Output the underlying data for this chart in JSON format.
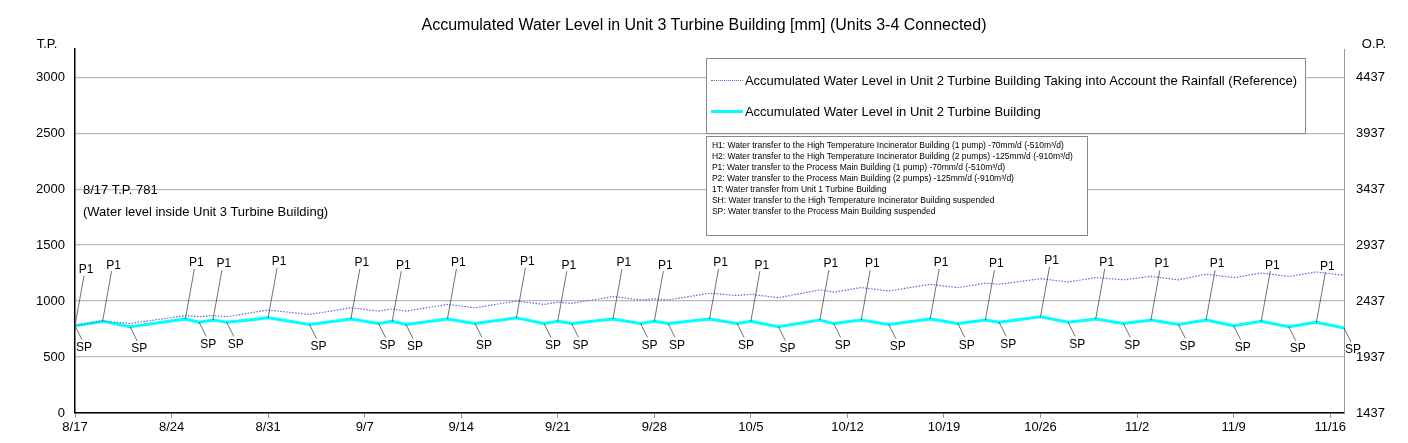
{
  "chart_data": {
    "type": "line",
    "title": "Accumulated Water Level in Unit 3 Turbine Building [mm] (Units 3-4 Connected)",
    "ylabel": "T.P.",
    "y2label": "O.P.",
    "x": [
      "--08-17",
      "--08-19",
      "--08-21",
      "--08-25",
      "--08-26",
      "--08-27",
      "--08-28",
      "--08-31",
      "--09-03",
      "--09-06",
      "--09-08",
      "--09-09",
      "--09-10",
      "--09-13",
      "--09-15",
      "--09-18",
      "--09-20",
      "--09-21",
      "--09-22",
      "--09-25",
      "--09-27",
      "--09-28",
      "--09-29",
      "--10-02",
      "--10-04",
      "--10-05",
      "--10-07",
      "--10-10",
      "--10-11",
      "--10-13",
      "--10-15",
      "--10-18",
      "--10-20",
      "--10-22",
      "--10-23",
      "--10-26",
      "--10-28",
      "--10-30",
      "--11-01",
      "--11-03",
      "--11-05",
      "--11-07",
      "--11-09",
      "--11-11",
      "--11-13",
      "--11-15",
      "--11-17"
    ],
    "series": [
      {
        "name": "Accumulated Water Level in Unit 2 Turbine Building Taking into Account the Rainfall (Reference)",
        "color": "#6666cc",
        "line_style": "dotted",
        "values": [
          780,
          820,
          800,
          870,
          860,
          870,
          860,
          920,
          880,
          940,
          910,
          930,
          910,
          970,
          940,
          1000,
          970,
          990,
          980,
          1040,
          1010,
          1020,
          1010,
          1070,
          1050,
          1060,
          1030,
          1100,
          1080,
          1120,
          1090,
          1150,
          1120,
          1160,
          1150,
          1200,
          1170,
          1210,
          1190,
          1220,
          1190,
          1240,
          1210,
          1250,
          1220,
          1260,
          1230
        ]
      },
      {
        "name": "Accumulated Water Level in Unit 2 Turbine Building",
        "color": "#00ffff",
        "line_style": "solid",
        "values": [
          780,
          820,
          770,
          840,
          810,
          830,
          810,
          850,
          790,
          840,
          800,
          820,
          790,
          840,
          800,
          850,
          800,
          820,
          800,
          840,
          800,
          820,
          800,
          840,
          800,
          820,
          770,
          830,
          800,
          830,
          790,
          840,
          800,
          830,
          810,
          860,
          810,
          840,
          800,
          830,
          790,
          830,
          780,
          820,
          770,
          810,
          760
        ]
      }
    ],
    "xlim": [
      "--08-17",
      "--11-17"
    ],
    "xticks": [
      {
        "value": "--08-17",
        "label": "8/17"
      },
      {
        "value": "--08-24",
        "label": "8/24"
      },
      {
        "value": "--08-31",
        "label": "8/31"
      },
      {
        "value": "--09-07",
        "label": "9/7"
      },
      {
        "value": "--09-14",
        "label": "9/14"
      },
      {
        "value": "--09-21",
        "label": "9/21"
      },
      {
        "value": "--09-28",
        "label": "9/28"
      },
      {
        "value": "--10-05",
        "label": "10/5"
      },
      {
        "value": "--10-12",
        "label": "10/12"
      },
      {
        "value": "--10-19",
        "label": "10/19"
      },
      {
        "value": "--10-26",
        "label": "10/26"
      },
      {
        "value": "--11-02",
        "label": "11/2"
      },
      {
        "value": "--11-09",
        "label": "11/9"
      },
      {
        "value": "--11-16",
        "label": "11/16"
      }
    ],
    "ylim": [
      0,
      3250
    ],
    "yticks": [
      0,
      500,
      1000,
      1500,
      2000,
      2500,
      3000
    ],
    "y2lim": [
      1437,
      4687
    ],
    "y2ticks": [
      1437,
      1937,
      2437,
      2937,
      3437,
      3937,
      4437
    ],
    "grid": "y",
    "legend": "top right",
    "annotations": [
      "8/17 T.P. 781\n(Water level inside Unit 3 Turbine Building)",
      "H1: Water transfer to the High Temperature Incinerator Building  (1 pump) -70mm/d (-510m³/d)",
      "H2: Water transfer to the High Temperature Incinerator Building  (2 pumps)  -125mm/d (-910m³/d)",
      "P1: Water transfer to the Process Main Building (1 pump)  -70mm/d (-510m³/d)",
      "P2: Water transfer to the Process Main Building (2 pumps)  -125mm/d (-910m³/d)",
      "1T: Water transfer from Unit 1 Turbine Building",
      "SH: Water transfer to the High Temperature Incinerator Building suspended",
      "SP: Water transfer to the Process Main Building suspended",
      {
        "text": "SP",
        "x": "--08-17",
        "y": 780
      },
      {
        "text": "P1",
        "x": "--08-17",
        "y": 780
      },
      {
        "text": "P1",
        "x": "--08-19",
        "y": 820
      },
      {
        "text": "SP",
        "x": "--08-21",
        "y": 770
      },
      {
        "text": "P1",
        "x": "--08-25",
        "y": 840
      },
      {
        "text": "SP",
        "x": "--08-26",
        "y": 810
      },
      {
        "text": "P1",
        "x": "--08-27",
        "y": 830
      },
      {
        "text": "SP",
        "x": "--08-28",
        "y": 810
      },
      {
        "text": "P1",
        "x": "--08-31",
        "y": 850
      },
      {
        "text": "SP",
        "x": "--09-03",
        "y": 790
      },
      {
        "text": "P1",
        "x": "--09-06",
        "y": 840
      },
      {
        "text": "SP",
        "x": "--09-08",
        "y": 800
      },
      {
        "text": "P1",
        "x": "--09-09",
        "y": 820
      },
      {
        "text": "SP",
        "x": "--09-10",
        "y": 790
      },
      {
        "text": "P1",
        "x": "--09-13",
        "y": 840
      },
      {
        "text": "SP",
        "x": "--09-15",
        "y": 800
      },
      {
        "text": "P1",
        "x": "--09-18",
        "y": 850
      },
      {
        "text": "SP",
        "x": "--09-20",
        "y": 800
      },
      {
        "text": "P1",
        "x": "--09-21",
        "y": 820
      },
      {
        "text": "SP",
        "x": "--09-22",
        "y": 800
      },
      {
        "text": "P1",
        "x": "--09-25",
        "y": 840
      },
      {
        "text": "SP",
        "x": "--09-27",
        "y": 800
      },
      {
        "text": "P1",
        "x": "--09-28",
        "y": 820
      },
      {
        "text": "SP",
        "x": "--09-29",
        "y": 800
      },
      {
        "text": "P1",
        "x": "--10-02",
        "y": 840
      },
      {
        "text": "SP",
        "x": "--10-04",
        "y": 800
      },
      {
        "text": "P1",
        "x": "--10-05",
        "y": 820
      },
      {
        "text": "SP",
        "x": "--10-07",
        "y": 770
      },
      {
        "text": "P1",
        "x": "--10-10",
        "y": 830
      },
      {
        "text": "SP",
        "x": "--10-11",
        "y": 800
      },
      {
        "text": "P1",
        "x": "--10-13",
        "y": 830
      },
      {
        "text": "SP",
        "x": "--10-15",
        "y": 790
      },
      {
        "text": "P1",
        "x": "--10-18",
        "y": 840
      },
      {
        "text": "SP",
        "x": "--10-20",
        "y": 800
      },
      {
        "text": "P1",
        "x": "--10-22",
        "y": 830
      },
      {
        "text": "SP",
        "x": "--10-23",
        "y": 810
      },
      {
        "text": "P1",
        "x": "--10-26",
        "y": 860
      },
      {
        "text": "SP",
        "x": "--10-28",
        "y": 810
      },
      {
        "text": "P1",
        "x": "--10-30",
        "y": 840
      },
      {
        "text": "SP",
        "x": "--11-01",
        "y": 800
      },
      {
        "text": "P1",
        "x": "--11-03",
        "y": 830
      },
      {
        "text": "SP",
        "x": "--11-05",
        "y": 790
      },
      {
        "text": "P1",
        "x": "--11-07",
        "y": 830
      },
      {
        "text": "SP",
        "x": "--11-09",
        "y": 780
      },
      {
        "text": "P1",
        "x": "--11-11",
        "y": 820
      },
      {
        "text": "SP",
        "x": "--11-13",
        "y": 770
      },
      {
        "text": "P1",
        "x": "--11-15",
        "y": 810
      },
      {
        "text": "SP",
        "x": "--11-17",
        "y": 760
      }
    ]
  }
}
